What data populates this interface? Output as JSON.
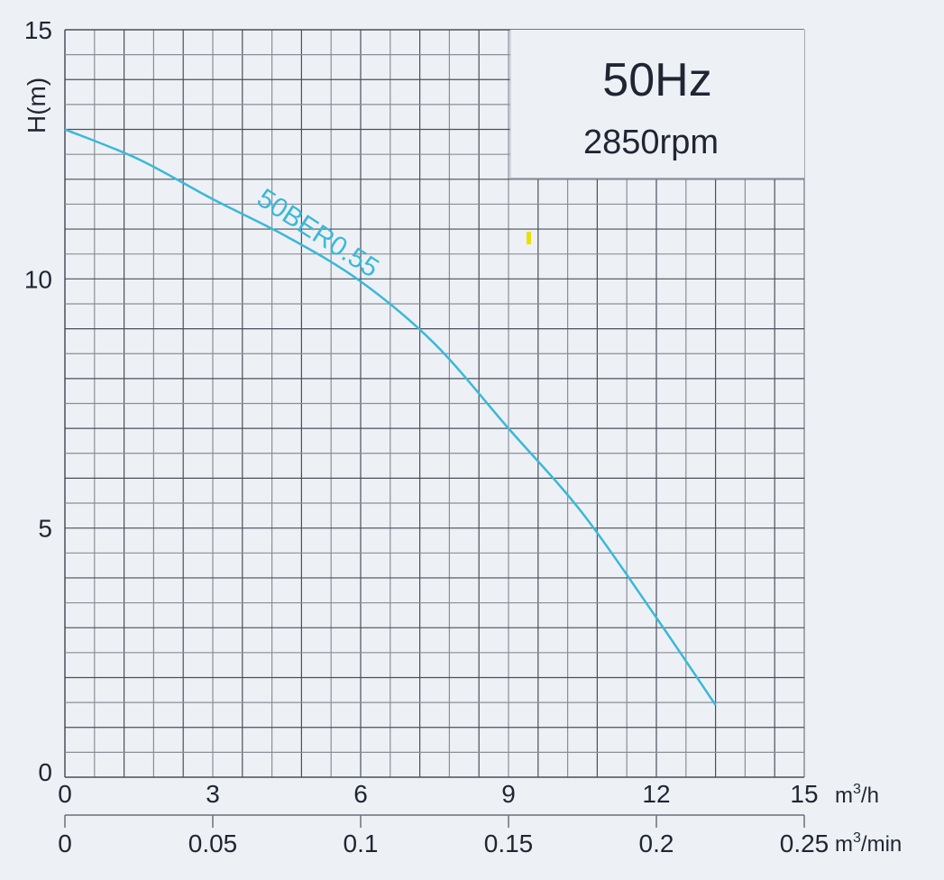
{
  "chart_data": {
    "type": "line",
    "title_frequency": "50Hz",
    "title_speed": "2850rpm",
    "ylabel": "H(m)",
    "xlabel": "m³/h",
    "xlabel_secondary": "m³/min",
    "xlim": [
      0,
      15
    ],
    "ylim": [
      0,
      15
    ],
    "x_ticks": [
      "0",
      "3",
      "6",
      "9",
      "12",
      "15"
    ],
    "x_tick_values": [
      0,
      3,
      6,
      9,
      12,
      15
    ],
    "x2_ticks": [
      "0",
      "0.05",
      "0.1",
      "0.15",
      "0.2",
      "0.25"
    ],
    "x2_tick_values": [
      0,
      0.05,
      0.1,
      0.15,
      0.2,
      0.25
    ],
    "y_ticks": [
      "0",
      "5",
      "10",
      "15"
    ],
    "y_tick_values": [
      0,
      5,
      10,
      15
    ],
    "grid": true,
    "grid_x_step": 0.6,
    "grid_y_step": 0.5,
    "series": [
      {
        "name": "50BER0.55",
        "color": "#3bb8d8",
        "x": [
          0,
          1.5,
          3,
          4.5,
          6,
          7.5,
          9,
          10.5,
          12,
          13.2
        ],
        "y": [
          13.0,
          12.4,
          11.6,
          10.85,
          9.95,
          8.7,
          7.0,
          5.3,
          3.2,
          1.45
        ]
      }
    ]
  }
}
